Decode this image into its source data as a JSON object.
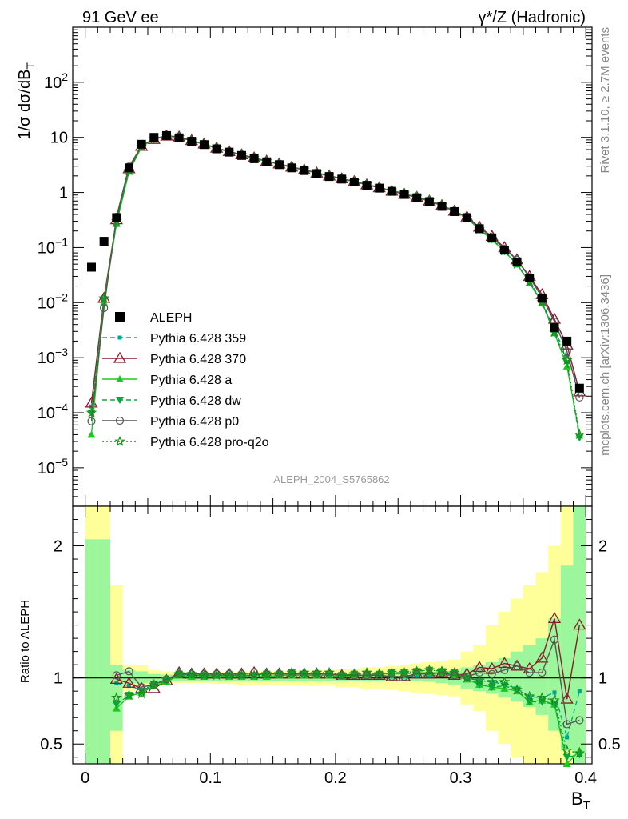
{
  "header": {
    "left": "91 GeV ee",
    "right": "γ*/Z (Hadronic)"
  },
  "side_labels": {
    "rivet": "Rivet 3.1.10, ≥ 2.7M events",
    "source": "mcplots.cern.ch [arXiv:1306.3436]"
  },
  "watermark": "ALEPH_2004_S5765862",
  "colors": {
    "data": "#000000",
    "p359": "#00a88f",
    "p370": "#8b1a2b",
    "pa": "#1ec81e",
    "pdw": "#0aa83c",
    "pp0": "#555555",
    "pq2o": "#1b8f1b",
    "band_inner": "#9cf79c",
    "band_outer": "#ffff99"
  },
  "chart_data": [
    {
      "type": "scatter",
      "title": "",
      "xlabel": "B_T",
      "ylabel": "1/σ dσ/dB_T",
      "log_y": true,
      "xlim": [
        -0.01,
        0.405
      ],
      "ylim": [
        2e-06,
        1000
      ],
      "y_tick_labels": [
        "10^-5",
        "10^-4",
        "10^-3",
        "10^-2",
        "10^-1",
        "1",
        "10",
        "10^2"
      ],
      "legend_position": "lower-left",
      "legend": [
        "ALEPH",
        "Pythia 6.428 359",
        "Pythia 6.428 370",
        "Pythia 6.428 a",
        "Pythia 6.428 dw",
        "Pythia 6.428 p0",
        "Pythia 6.428 pro-q2o"
      ],
      "x": [
        0.005,
        0.015,
        0.025,
        0.035,
        0.045,
        0.055,
        0.065,
        0.075,
        0.085,
        0.095,
        0.105,
        0.115,
        0.125,
        0.135,
        0.145,
        0.155,
        0.165,
        0.175,
        0.185,
        0.195,
        0.205,
        0.215,
        0.225,
        0.235,
        0.245,
        0.255,
        0.265,
        0.275,
        0.285,
        0.295,
        0.305,
        0.315,
        0.325,
        0.335,
        0.345,
        0.355,
        0.365,
        0.375,
        0.385,
        0.395
      ],
      "series": [
        {
          "name": "ALEPH",
          "values": [
            0.044,
            0.13,
            0.35,
            2.8,
            7.5,
            10.0,
            10.8,
            9.8,
            8.5,
            7.4,
            6.2,
            5.4,
            4.7,
            4.1,
            3.6,
            3.2,
            2.8,
            2.5,
            2.2,
            1.95,
            1.75,
            1.55,
            1.35,
            1.2,
            1.05,
            0.92,
            0.8,
            0.68,
            0.56,
            0.45,
            0.35,
            0.22,
            0.15,
            0.09,
            0.055,
            0.028,
            0.012,
            0.0035,
            0.002,
            0.00028
          ]
        },
        {
          "name": "Pythia 6.428 359",
          "values": [
            0.00013,
            0.011,
            0.3,
            2.5,
            6.8,
            9.5,
            10.7,
            10.1,
            8.7,
            7.55,
            6.35,
            5.5,
            4.8,
            4.2,
            3.7,
            3.3,
            2.9,
            2.58,
            2.26,
            2.0,
            1.77,
            1.58,
            1.38,
            1.22,
            1.06,
            0.93,
            0.81,
            0.69,
            0.57,
            0.46,
            0.35,
            0.215,
            0.145,
            0.085,
            0.05,
            0.024,
            0.0105,
            0.0031,
            0.0011,
            0.00025
          ]
        },
        {
          "name": "Pythia 6.428 370",
          "values": [
            0.00015,
            0.012,
            0.32,
            2.7,
            6.9,
            9.2,
            10.6,
            10.2,
            8.8,
            7.6,
            6.4,
            5.55,
            4.85,
            4.25,
            3.72,
            3.3,
            2.9,
            2.58,
            2.26,
            2.0,
            1.78,
            1.58,
            1.38,
            1.22,
            1.06,
            0.93,
            0.82,
            0.7,
            0.58,
            0.46,
            0.36,
            0.235,
            0.16,
            0.1,
            0.06,
            0.03,
            0.014,
            0.005,
            0.0017,
            0.00024
          ]
        },
        {
          "name": "Pythia 6.428 a",
          "values": [
            4e-05,
            0.01,
            0.27,
            2.4,
            6.7,
            9.4,
            10.5,
            10.0,
            8.6,
            7.5,
            6.3,
            5.45,
            4.75,
            4.15,
            3.65,
            3.25,
            2.85,
            2.55,
            2.25,
            1.99,
            1.77,
            1.58,
            1.38,
            1.23,
            1.08,
            0.95,
            0.83,
            0.71,
            0.58,
            0.46,
            0.345,
            0.21,
            0.14,
            0.085,
            0.05,
            0.023,
            0.01,
            0.0028,
            0.0007,
            4e-05
          ]
        },
        {
          "name": "Pythia 6.428 dw",
          "values": [
            0.0001,
            0.011,
            0.28,
            2.45,
            6.75,
            9.45,
            10.6,
            10.05,
            8.65,
            7.55,
            6.35,
            5.5,
            4.8,
            4.2,
            3.7,
            3.3,
            2.9,
            2.58,
            2.27,
            2.01,
            1.79,
            1.59,
            1.39,
            1.24,
            1.09,
            0.96,
            0.84,
            0.72,
            0.59,
            0.47,
            0.35,
            0.21,
            0.14,
            0.085,
            0.05,
            0.023,
            0.0098,
            0.0028,
            0.0008,
            3.5e-05
          ]
        },
        {
          "name": "Pythia 6.428 p0",
          "values": [
            7e-05,
            0.008,
            0.36,
            2.95,
            7.0,
            9.5,
            10.7,
            10.1,
            8.75,
            7.6,
            6.4,
            5.55,
            4.85,
            4.25,
            3.72,
            3.3,
            2.9,
            2.58,
            2.27,
            2.0,
            1.78,
            1.58,
            1.38,
            1.22,
            1.06,
            0.93,
            0.82,
            0.7,
            0.58,
            0.46,
            0.355,
            0.23,
            0.155,
            0.095,
            0.06,
            0.029,
            0.0125,
            0.0045,
            0.0013,
            0.00019
          ]
        },
        {
          "name": "Pythia 6.428 pro-q2o",
          "values": [
            0.0001,
            0.012,
            0.3,
            2.5,
            6.8,
            9.45,
            10.65,
            10.05,
            8.7,
            7.55,
            6.35,
            5.5,
            4.8,
            4.2,
            3.7,
            3.3,
            2.9,
            2.6,
            2.28,
            2.02,
            1.79,
            1.6,
            1.4,
            1.24,
            1.09,
            0.96,
            0.84,
            0.72,
            0.59,
            0.47,
            0.35,
            0.215,
            0.145,
            0.087,
            0.05,
            0.024,
            0.0102,
            0.0029,
            0.0009,
            4e-05
          ]
        }
      ]
    },
    {
      "type": "line",
      "title": "",
      "xlabel": "B_T",
      "ylabel": "Ratio to ALEPH",
      "xlim": [
        -0.01,
        0.405
      ],
      "ylim": [
        0.35,
        2.3
      ],
      "x_tick_labels": [
        "0",
        "0.1",
        "0.2",
        "0.3",
        "0.4"
      ],
      "y_tick_labels": [
        "0.5",
        "1",
        "2"
      ],
      "x": [
        0.005,
        0.015,
        0.025,
        0.035,
        0.045,
        0.055,
        0.065,
        0.075,
        0.085,
        0.095,
        0.105,
        0.115,
        0.125,
        0.135,
        0.145,
        0.155,
        0.165,
        0.175,
        0.185,
        0.195,
        0.205,
        0.215,
        0.225,
        0.235,
        0.245,
        0.255,
        0.265,
        0.275,
        0.285,
        0.295,
        0.305,
        0.315,
        0.325,
        0.335,
        0.345,
        0.355,
        0.365,
        0.375,
        0.385,
        0.395
      ],
      "band_inner": [
        [
          0.35,
          2.05
        ],
        [
          0.35,
          2.05
        ],
        [
          0.6,
          1.1
        ],
        [
          0.95,
          1.06
        ],
        [
          0.96,
          1.05
        ],
        [
          0.97,
          1.03
        ],
        [
          0.975,
          1.025
        ],
        [
          0.98,
          1.02
        ],
        [
          0.98,
          1.02
        ],
        [
          0.98,
          1.02
        ],
        [
          0.98,
          1.02
        ],
        [
          0.98,
          1.02
        ],
        [
          0.98,
          1.02
        ],
        [
          0.98,
          1.02
        ],
        [
          0.98,
          1.02
        ],
        [
          0.98,
          1.02
        ],
        [
          0.98,
          1.02
        ],
        [
          0.98,
          1.02
        ],
        [
          0.98,
          1.02
        ],
        [
          0.98,
          1.02
        ],
        [
          0.98,
          1.02
        ],
        [
          0.98,
          1.02
        ],
        [
          0.98,
          1.02
        ],
        [
          0.98,
          1.02
        ],
        [
          0.98,
          1.02
        ],
        [
          0.98,
          1.02
        ],
        [
          0.975,
          1.025
        ],
        [
          0.97,
          1.03
        ],
        [
          0.96,
          1.04
        ],
        [
          0.95,
          1.05
        ],
        [
          0.92,
          1.08
        ],
        [
          0.9,
          1.1
        ],
        [
          0.88,
          1.12
        ],
        [
          0.85,
          1.15
        ],
        [
          0.82,
          1.2
        ],
        [
          0.78,
          1.25
        ],
        [
          0.72,
          1.3
        ],
        [
          0.6,
          1.45
        ],
        [
          0.45,
          1.85
        ],
        [
          0.35,
          2.3
        ]
      ],
      "band_outer": [
        [
          0.35,
          2.3
        ],
        [
          0.35,
          2.3
        ],
        [
          0.35,
          1.7
        ],
        [
          0.9,
          1.1
        ],
        [
          0.93,
          1.1
        ],
        [
          0.95,
          1.06
        ],
        [
          0.96,
          1.05
        ],
        [
          0.96,
          1.04
        ],
        [
          0.96,
          1.04
        ],
        [
          0.96,
          1.04
        ],
        [
          0.955,
          1.045
        ],
        [
          0.955,
          1.045
        ],
        [
          0.95,
          1.05
        ],
        [
          0.95,
          1.05
        ],
        [
          0.95,
          1.05
        ],
        [
          0.95,
          1.05
        ],
        [
          0.945,
          1.055
        ],
        [
          0.945,
          1.055
        ],
        [
          0.94,
          1.06
        ],
        [
          0.94,
          1.06
        ],
        [
          0.93,
          1.07
        ],
        [
          0.93,
          1.07
        ],
        [
          0.92,
          1.08
        ],
        [
          0.92,
          1.08
        ],
        [
          0.91,
          1.09
        ],
        [
          0.9,
          1.1
        ],
        [
          0.89,
          1.11
        ],
        [
          0.88,
          1.12
        ],
        [
          0.87,
          1.13
        ],
        [
          0.86,
          1.14
        ],
        [
          0.8,
          1.2
        ],
        [
          0.75,
          1.25
        ],
        [
          0.6,
          1.4
        ],
        [
          0.5,
          1.5
        ],
        [
          0.4,
          1.6
        ],
        [
          0.35,
          1.7
        ],
        [
          0.35,
          1.8
        ],
        [
          0.35,
          2.0
        ],
        [
          0.35,
          2.3
        ],
        [
          0.35,
          2.3
        ]
      ],
      "series": [
        {
          "name": "Pythia 6.428 359",
          "values": [
            null,
            null,
            0.96,
            0.94,
            0.91,
            0.95,
            0.99,
            1.03,
            1.02,
            1.02,
            1.02,
            1.02,
            1.02,
            1.02,
            1.03,
            1.03,
            1.04,
            1.03,
            1.03,
            1.03,
            1.01,
            1.02,
            1.02,
            1.02,
            1.01,
            1.01,
            1.01,
            1.02,
            1.02,
            1.02,
            1.0,
            0.98,
            0.97,
            0.95,
            0.92,
            0.86,
            0.85,
            0.89,
            0.55,
            0.9
          ]
        },
        {
          "name": "Pythia 6.428 370",
          "values": [
            null,
            null,
            0.99,
            0.96,
            0.92,
            0.92,
            0.98,
            1.04,
            1.03,
            1.03,
            1.03,
            1.03,
            1.03,
            1.04,
            1.03,
            1.03,
            1.03,
            1.03,
            1.03,
            1.03,
            1.02,
            1.02,
            1.02,
            1.02,
            1.01,
            1.01,
            1.03,
            1.03,
            1.04,
            1.02,
            1.03,
            1.08,
            1.07,
            1.11,
            1.09,
            1.07,
            1.15,
            1.45,
            0.84,
            1.4
          ]
        },
        {
          "name": "Pythia 6.428 a",
          "values": [
            null,
            null,
            0.77,
            0.86,
            0.89,
            0.94,
            0.97,
            1.02,
            1.01,
            1.01,
            1.02,
            1.01,
            1.01,
            1.01,
            1.01,
            1.02,
            1.02,
            1.02,
            1.02,
            1.02,
            1.01,
            1.02,
            1.02,
            1.03,
            1.03,
            1.03,
            1.04,
            1.04,
            1.04,
            1.02,
            0.99,
            0.95,
            0.93,
            0.92,
            0.9,
            0.82,
            0.83,
            0.8,
            0.35,
            0.45
          ]
        },
        {
          "name": "Pythia 6.428 dw",
          "values": [
            null,
            null,
            0.8,
            0.87,
            0.9,
            0.95,
            0.98,
            1.03,
            1.02,
            1.02,
            1.02,
            1.02,
            1.02,
            1.02,
            1.03,
            1.03,
            1.04,
            1.03,
            1.03,
            1.03,
            1.02,
            1.03,
            1.03,
            1.03,
            1.04,
            1.04,
            1.05,
            1.06,
            1.05,
            1.04,
            1.0,
            0.95,
            0.93,
            0.94,
            0.91,
            0.82,
            0.82,
            0.8,
            0.4,
            0.42
          ]
        },
        {
          "name": "Pythia 6.428 p0",
          "values": [
            null,
            null,
            1.02,
            1.05,
            0.93,
            0.95,
            0.99,
            1.03,
            1.03,
            1.03,
            1.03,
            1.03,
            1.03,
            1.04,
            1.03,
            1.03,
            1.03,
            1.03,
            1.03,
            1.03,
            1.02,
            1.02,
            1.02,
            1.02,
            1.01,
            1.01,
            1.03,
            1.03,
            1.04,
            1.02,
            1.01,
            1.04,
            1.03,
            1.06,
            1.09,
            1.04,
            1.04,
            1.29,
            0.65,
            0.68
          ]
        },
        {
          "name": "Pythia 6.428 pro-q2o",
          "values": [
            null,
            null,
            0.85,
            0.87,
            0.88,
            0.95,
            0.99,
            1.03,
            1.03,
            1.02,
            1.02,
            1.02,
            1.02,
            1.02,
            1.03,
            1.03,
            1.04,
            1.04,
            1.04,
            1.04,
            1.02,
            1.03,
            1.04,
            1.03,
            1.04,
            1.04,
            1.05,
            1.06,
            1.05,
            1.04,
            1.0,
            0.98,
            0.97,
            0.97,
            0.91,
            0.86,
            0.85,
            0.83,
            0.45,
            0.43
          ]
        }
      ]
    }
  ]
}
